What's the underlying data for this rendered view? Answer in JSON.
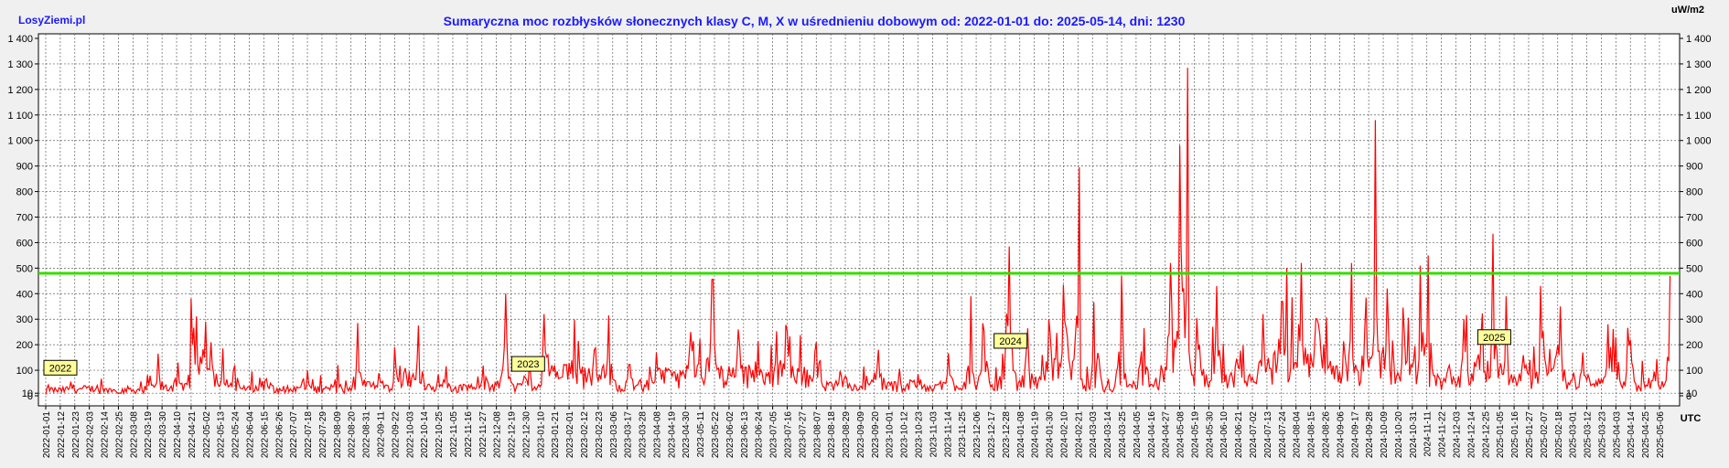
{
  "site_label": "LosyZiemi.pl",
  "colors": {
    "background": "#f0f0f0",
    "title": "#1a1aff",
    "series": "#ff0000",
    "threshold": "#33dd00",
    "grid": "#606060",
    "year_badge_fill": "#ffff99"
  },
  "chart_data": {
    "type": "line",
    "title": "Sumaryczna moc rozbłysków słonecznych klasy C, M, X w uśrednieniu dobowym od: 2022-01-01 do: 2025-05-14, dni: 1230",
    "y_unit_label": "uW/m2",
    "x_unit_label": "UTC",
    "x_start": "2022-01-01",
    "x_end": "2025-05-14",
    "days": 1230,
    "ylim": [
      0,
      1400
    ],
    "yticks": [
      0,
      10,
      100,
      200,
      300,
      400,
      500,
      600,
      700,
      800,
      900,
      1000,
      1100,
      1200,
      1300,
      1400
    ],
    "ytick_labels": [
      "0",
      "10",
      "100",
      "200",
      "300",
      "400",
      "500",
      "600",
      "700",
      "800",
      "900",
      "1 000",
      "1 100",
      "1 200",
      "1 300",
      "1 400"
    ],
    "grid": true,
    "threshold": 480,
    "xtick_labels": [
      "2022-01-01",
      "2022-01-12",
      "2022-01-23",
      "2022-02-03",
      "2022-02-14",
      "2022-02-25",
      "2022-03-08",
      "2022-03-19",
      "2022-03-30",
      "2022-04-10",
      "2022-04-21",
      "2022-05-02",
      "2022-05-13",
      "2022-05-24",
      "2022-06-04",
      "2022-06-15",
      "2022-06-26",
      "2022-07-07",
      "2022-07-18",
      "2022-07-29",
      "2022-08-09",
      "2022-08-20",
      "2022-08-31",
      "2022-09-11",
      "2022-09-22",
      "2022-10-03",
      "2022-10-14",
      "2022-10-25",
      "2022-11-05",
      "2022-11-16",
      "2022-11-27",
      "2022-12-08",
      "2022-12-19",
      "2022-12-30",
      "2023-01-10",
      "2023-01-21",
      "2023-02-01",
      "2023-02-12",
      "2023-02-23",
      "2023-03-06",
      "2023-03-17",
      "2023-03-28",
      "2023-04-08",
      "2023-04-19",
      "2023-04-30",
      "2023-05-11",
      "2023-05-22",
      "2023-06-02",
      "2023-06-13",
      "2023-06-24",
      "2023-07-05",
      "2023-07-16",
      "2023-07-27",
      "2023-08-07",
      "2023-08-18",
      "2023-08-29",
      "2023-09-09",
      "2023-09-20",
      "2023-10-01",
      "2023-10-12",
      "2023-10-23",
      "2023-11-03",
      "2023-11-14",
      "2023-11-25",
      "2023-12-06",
      "2023-12-17",
      "2023-12-28",
      "2024-01-08",
      "2024-01-19",
      "2024-01-30",
      "2024-02-10",
      "2024-02-21",
      "2024-03-03",
      "2024-03-14",
      "2024-03-25",
      "2024-04-05",
      "2024-04-16",
      "2024-04-27",
      "2024-05-08",
      "2024-05-19",
      "2024-05-30",
      "2024-06-10",
      "2024-06-21",
      "2024-07-02",
      "2024-07-13",
      "2024-07-24",
      "2024-08-04",
      "2024-08-15",
      "2024-08-26",
      "2024-09-06",
      "2024-09-17",
      "2024-09-28",
      "2024-10-09",
      "2024-10-20",
      "2024-10-31",
      "2024-11-11",
      "2024-11-22",
      "2024-12-03",
      "2024-12-14",
      "2024-12-25",
      "2025-01-05",
      "2025-01-16",
      "2025-01-27",
      "2025-02-07",
      "2025-02-18",
      "2025-03-01",
      "2025-03-12",
      "2025-03-23",
      "2025-04-03",
      "2025-04-14",
      "2025-04-25",
      "2025-05-06"
    ],
    "year_badges": [
      {
        "label": "2022",
        "date": "2022-01-01",
        "value": 110
      },
      {
        "label": "2023",
        "date": "2023-01-01",
        "value": 125
      },
      {
        "label": "2024",
        "date": "2024-01-01",
        "value": 215
      },
      {
        "label": "2025",
        "date": "2025-01-01",
        "value": 230
      }
    ],
    "series": [
      {
        "points": [
          [
            "2022-01-01",
            5
          ],
          [
            "2022-01-20",
            55
          ],
          [
            "2022-02-10",
            20
          ],
          [
            "2022-03-01",
            10
          ],
          [
            "2022-03-20",
            40
          ],
          [
            "2022-03-27",
            165
          ],
          [
            "2022-04-10",
            35
          ],
          [
            "2022-04-21",
            380
          ],
          [
            "2022-05-02",
            290
          ],
          [
            "2022-05-06",
            210
          ],
          [
            "2022-05-15",
            185
          ],
          [
            "2022-05-24",
            120
          ],
          [
            "2022-06-15",
            20
          ],
          [
            "2022-07-18",
            100
          ],
          [
            "2022-08-09",
            10
          ],
          [
            "2022-08-25",
            285
          ],
          [
            "2022-09-11",
            60
          ],
          [
            "2022-09-22",
            190
          ],
          [
            "2022-10-10",
            275
          ],
          [
            "2022-11-01",
            30
          ],
          [
            "2022-11-27",
            60
          ],
          [
            "2022-12-15",
            400
          ],
          [
            "2023-01-01",
            40
          ],
          [
            "2023-01-13",
            320
          ],
          [
            "2023-02-08",
            215
          ],
          [
            "2023-02-20",
            180
          ],
          [
            "2023-03-03",
            315
          ],
          [
            "2023-03-20",
            70
          ],
          [
            "2023-04-08",
            170
          ],
          [
            "2023-05-04",
            250
          ],
          [
            "2023-05-20",
            455
          ],
          [
            "2023-06-10",
            200
          ],
          [
            "2023-06-24",
            215
          ],
          [
            "2023-07-16",
            255
          ],
          [
            "2023-08-07",
            210
          ],
          [
            "2023-08-24",
            50
          ],
          [
            "2023-09-23",
            180
          ],
          [
            "2023-10-20",
            60
          ],
          [
            "2023-11-14",
            80
          ],
          [
            "2023-12-02",
            390
          ],
          [
            "2023-12-10",
            100
          ],
          [
            "2023-12-31",
            585
          ],
          [
            "2024-01-15",
            110
          ],
          [
            "2024-01-30",
            300
          ],
          [
            "2024-02-10",
            435
          ],
          [
            "2024-02-22",
            895
          ],
          [
            "2024-03-05",
            30
          ],
          [
            "2024-03-25",
            470
          ],
          [
            "2024-04-10",
            40
          ],
          [
            "2024-05-01",
            520
          ],
          [
            "2024-05-08",
            980
          ],
          [
            "2024-05-14",
            1285
          ],
          [
            "2024-05-22",
            180
          ],
          [
            "2024-06-05",
            430
          ],
          [
            "2024-06-21",
            120
          ],
          [
            "2024-07-10",
            320
          ],
          [
            "2024-07-24",
            370
          ],
          [
            "2024-08-08",
            520
          ],
          [
            "2024-08-20",
            300
          ],
          [
            "2024-09-15",
            520
          ],
          [
            "2024-09-25",
            260
          ],
          [
            "2024-10-03",
            1080
          ],
          [
            "2024-10-12",
            420
          ],
          [
            "2024-10-25",
            240
          ],
          [
            "2024-11-06",
            510
          ],
          [
            "2024-11-12",
            550
          ],
          [
            "2024-11-28",
            120
          ],
          [
            "2024-12-09",
            300
          ],
          [
            "2024-12-22",
            240
          ],
          [
            "2024-12-31",
            635
          ],
          [
            "2025-01-10",
            390
          ],
          [
            "2025-01-25",
            120
          ],
          [
            "2025-02-05",
            430
          ],
          [
            "2025-02-20",
            350
          ],
          [
            "2025-03-10",
            80
          ],
          [
            "2025-03-28",
            280
          ],
          [
            "2025-04-14",
            220
          ],
          [
            "2025-05-01",
            60
          ],
          [
            "2025-05-14",
            470
          ]
        ]
      }
    ]
  }
}
